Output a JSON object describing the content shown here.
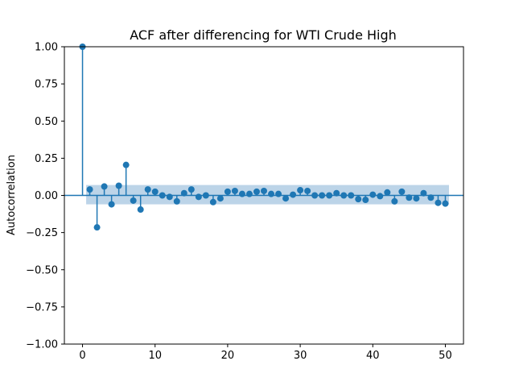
{
  "chart_data": {
    "type": "scatter",
    "title": "ACF after differencing for WTI Crude High",
    "xlabel": "",
    "ylabel": "Autocorrelation",
    "xlim": [
      -2.5,
      52.5
    ],
    "ylim": [
      -1.0,
      1.0
    ],
    "x_ticks": [
      0,
      10,
      20,
      30,
      40,
      50
    ],
    "x_tick_labels": [
      "0",
      "10",
      "20",
      "30",
      "40",
      "50"
    ],
    "y_ticks": [
      -1.0,
      -0.75,
      -0.5,
      -0.25,
      0.0,
      0.25,
      0.5,
      0.75,
      1.0
    ],
    "y_tick_labels": [
      "−1.00",
      "−0.75",
      "−0.50",
      "−0.25",
      "0.00",
      "0.25",
      "0.50",
      "0.75",
      "1.00"
    ],
    "grid": false,
    "colors": {
      "series": "#1f77b4",
      "confidence_band": "#a6c6e0"
    },
    "confidence_band": {
      "lag_start": 0.5,
      "lag_end": 50.5,
      "upper": 0.07,
      "lower": -0.06
    },
    "lags": [
      0,
      1,
      2,
      3,
      4,
      5,
      6,
      7,
      8,
      9,
      10,
      11,
      12,
      13,
      14,
      15,
      16,
      17,
      18,
      19,
      20,
      21,
      22,
      23,
      24,
      25,
      26,
      27,
      28,
      29,
      30,
      31,
      32,
      33,
      34,
      35,
      36,
      37,
      38,
      39,
      40,
      41,
      42,
      43,
      44,
      45,
      46,
      47,
      48,
      49,
      50
    ],
    "values": [
      1.0,
      0.04,
      -0.215,
      0.06,
      -0.06,
      0.065,
      0.205,
      -0.035,
      -0.095,
      0.04,
      0.025,
      0.0,
      -0.01,
      -0.04,
      0.015,
      0.04,
      -0.01,
      0.0,
      -0.045,
      -0.02,
      0.025,
      0.03,
      0.01,
      0.01,
      0.025,
      0.03,
      0.01,
      0.01,
      -0.02,
      0.005,
      0.035,
      0.03,
      0.0,
      0.0,
      0.0,
      0.015,
      0.0,
      0.0,
      -0.025,
      -0.03,
      0.005,
      -0.005,
      0.02,
      -0.04,
      0.025,
      -0.015,
      -0.02,
      0.015,
      -0.015,
      -0.05,
      -0.055
    ]
  }
}
